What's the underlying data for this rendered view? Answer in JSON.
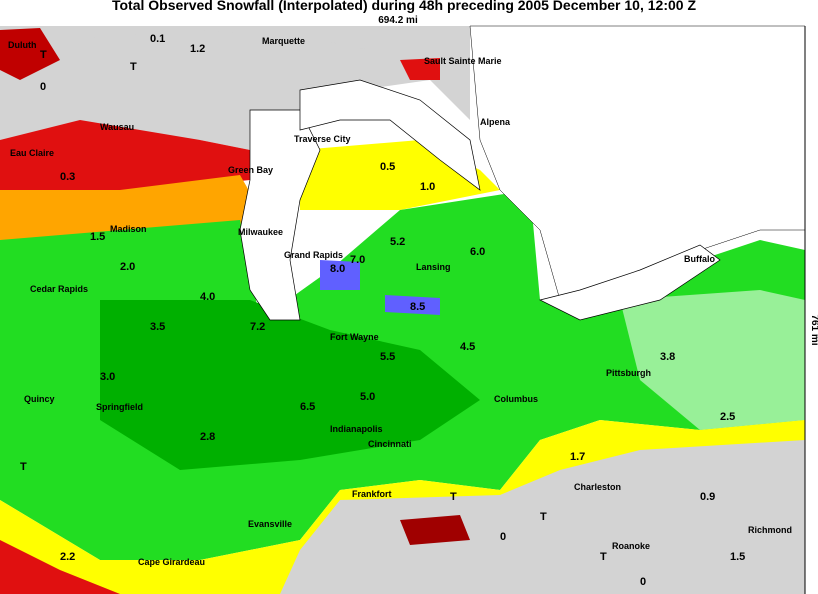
{
  "header": {
    "title": "Total Observed Snowfall (Interpolated) during 48h preceding 2005 December 10, 12:00 Z",
    "width_scale": "694.2 mi",
    "height_scale": "761 mi"
  },
  "cities": [
    "Duluth",
    "Marquette",
    "Sault Sainte Marie",
    "Wausau",
    "Alpena",
    "Eau Claire",
    "Traverse City",
    "Green Bay",
    "Madison",
    "Milwaukee",
    "Grand Rapids",
    "Lansing",
    "Buffalo",
    "Cedar Rapids",
    "Fort Wayne",
    "Pittsburgh",
    "Columbus",
    "Quincy",
    "Springfield",
    "Indianapolis",
    "Cincinnati",
    "Frankfort",
    "Charleston",
    "Evansville",
    "Cape Girardeau",
    "Roanoke",
    "Richmond"
  ],
  "observations": [
    "T",
    "0.1",
    "1.2",
    "T",
    "0",
    "0.3",
    "1.5",
    "2.0",
    "0.5",
    "1.0",
    "8.0",
    "7.0",
    "8.5",
    "5.2",
    "6.0",
    "4.0",
    "3.5",
    "7.2",
    "5.5",
    "4.5",
    "3.0",
    "2.8",
    "6.5",
    "5.0",
    "T",
    "T",
    "0",
    "1.7",
    "3.8",
    "2.5",
    "T",
    "0.9",
    "1.5",
    "2.2",
    "T",
    "0"
  ]
}
